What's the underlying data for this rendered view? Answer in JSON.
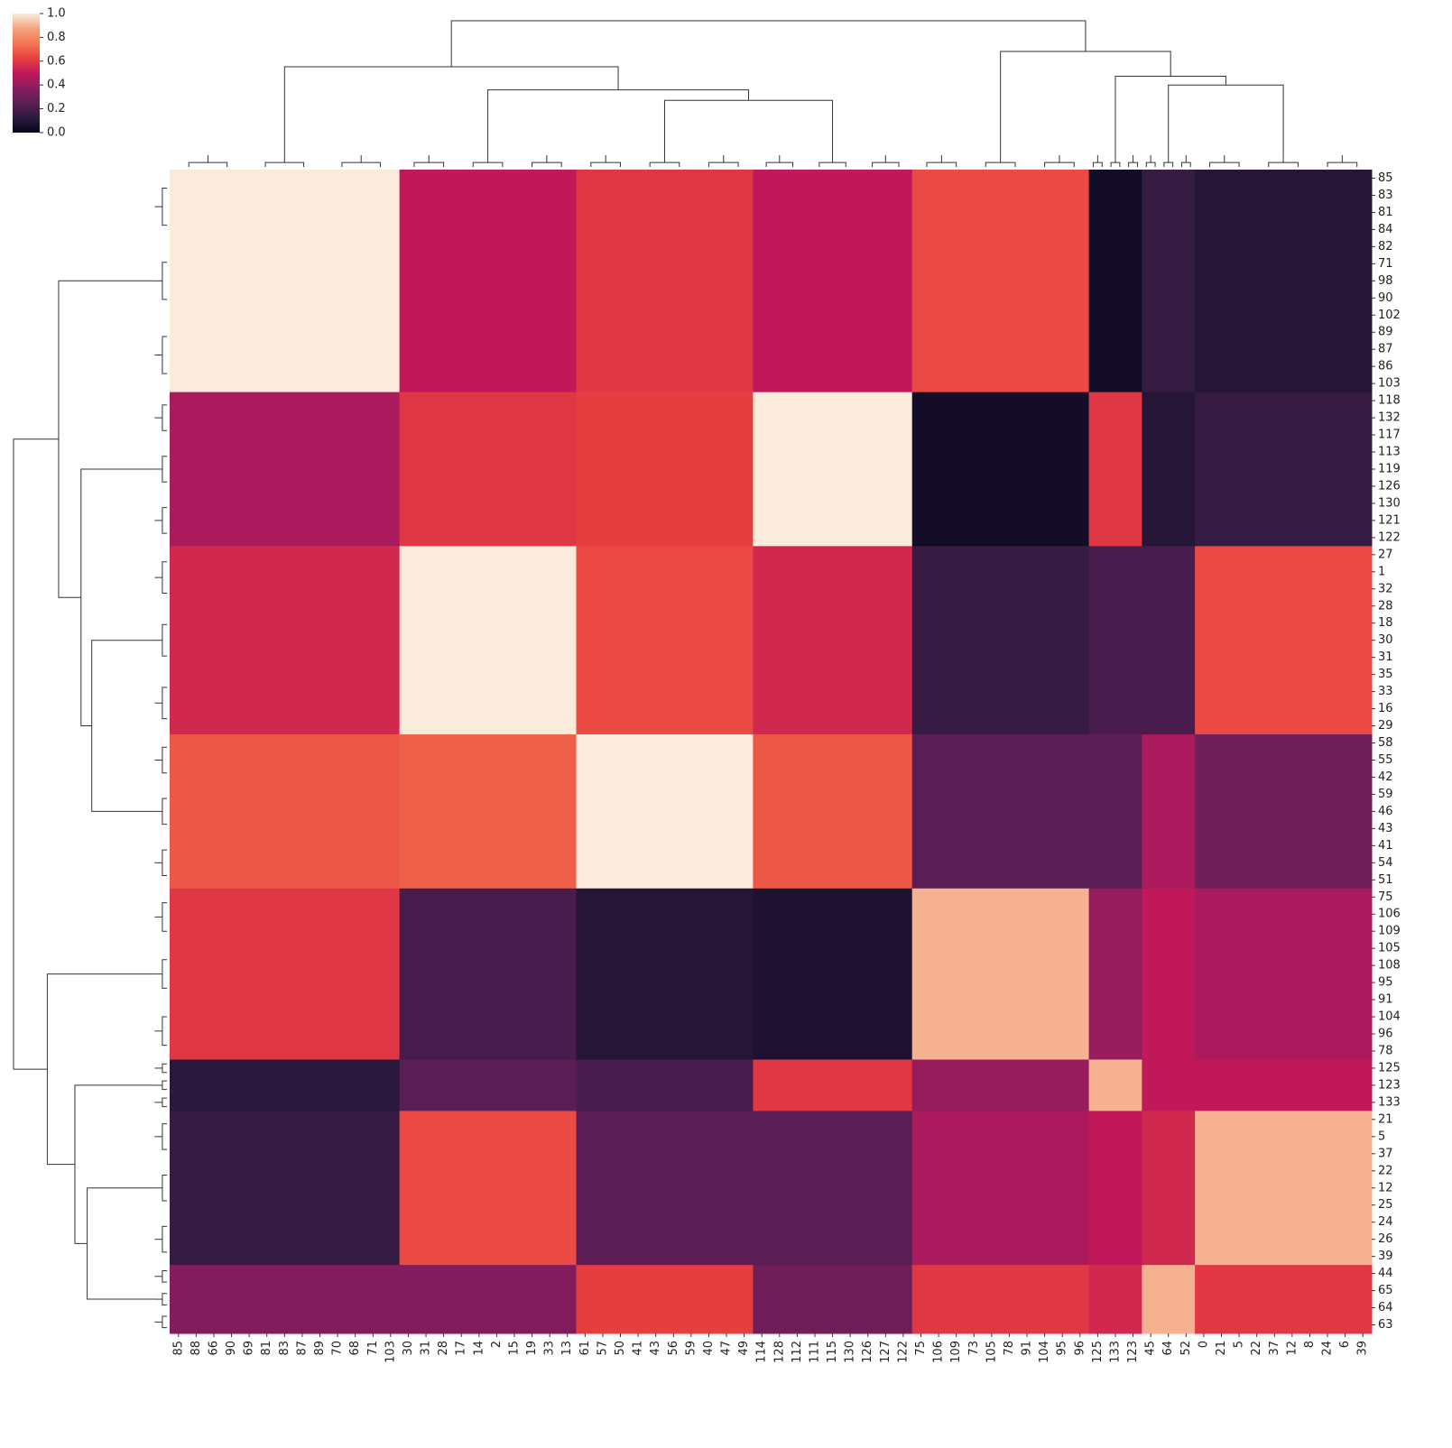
{
  "chart_data": {
    "type": "clustermap",
    "x_groups": [
      [
        "85",
        "88",
        "66",
        "90",
        "69",
        "81",
        "83",
        "87",
        "89",
        "70",
        "68",
        "71",
        "103"
      ],
      [
        "30",
        "31",
        "28",
        "17",
        "14",
        "2",
        "15",
        "19",
        "33",
        "13"
      ],
      [
        "61",
        "57",
        "50",
        "41",
        "43",
        "56",
        "59",
        "40",
        "47",
        "49"
      ],
      [
        "114",
        "128",
        "112",
        "111",
        "115",
        "130",
        "126",
        "127",
        "122"
      ],
      [
        "75",
        "106",
        "109",
        "73",
        "105",
        "78",
        "91",
        "104",
        "95",
        "96"
      ],
      [
        "125",
        "133",
        "123"
      ],
      [
        "45",
        "64",
        "52"
      ],
      [
        "0",
        "21",
        "5",
        "22",
        "37",
        "12",
        "8",
        "24",
        "6",
        "39"
      ]
    ],
    "y_groups": [
      [
        "85",
        "83",
        "81",
        "84",
        "82",
        "71",
        "98",
        "90",
        "102",
        "89",
        "87",
        "86",
        "103"
      ],
      [
        "118",
        "132",
        "117",
        "113",
        "119",
        "126",
        "130",
        "121",
        "122"
      ],
      [
        "27",
        "1",
        "32",
        "28",
        "18",
        "30",
        "31",
        "35",
        "33",
        "16",
        "29"
      ],
      [
        "58",
        "55",
        "42",
        "59",
        "46",
        "43",
        "41",
        "54",
        "51"
      ],
      [
        "75",
        "106",
        "109",
        "105",
        "108",
        "95",
        "91",
        "104",
        "96",
        "78"
      ],
      [
        "125",
        "123",
        "133"
      ],
      [
        "21",
        "5",
        "37",
        "22",
        "12",
        "25",
        "24",
        "26",
        "39"
      ],
      [
        "44",
        "65",
        "64",
        "63"
      ]
    ],
    "values": [
      [
        1.0,
        0.5,
        0.6,
        0.5,
        0.65,
        0.05,
        0.15,
        0.1
      ],
      [
        0.45,
        0.6,
        0.62,
        1.0,
        0.05,
        0.6,
        0.1,
        0.15
      ],
      [
        0.55,
        1.0,
        0.65,
        0.55,
        0.15,
        0.2,
        0.2,
        0.65
      ],
      [
        0.68,
        0.7,
        1.0,
        0.68,
        0.25,
        0.25,
        0.45,
        0.3
      ],
      [
        0.6,
        0.2,
        0.1,
        0.08,
        0.9,
        0.4,
        0.5,
        0.45
      ],
      [
        0.12,
        0.25,
        0.2,
        0.6,
        0.4,
        0.9,
        0.5,
        0.5
      ],
      [
        0.15,
        0.65,
        0.25,
        0.25,
        0.45,
        0.5,
        0.55,
        0.9
      ],
      [
        0.35,
        0.35,
        0.62,
        0.3,
        0.6,
        0.55,
        0.9,
        0.6
      ]
    ],
    "colormap": [
      "#03051a",
      "#2d1a3e",
      "#5a1e55",
      "#8b1d5f",
      "#c1185a",
      "#e83f3f",
      "#f37651",
      "#f5a37d",
      "#faebdd"
    ],
    "clim": [
      0,
      1
    ],
    "cticks": [
      {
        "value": 0,
        "label": "0.0"
      },
      {
        "value": 0.2,
        "label": "0.2"
      },
      {
        "value": 0.4,
        "label": "0.4"
      },
      {
        "value": 0.6,
        "label": "0.6"
      },
      {
        "value": 0.8,
        "label": "0.8"
      },
      {
        "value": 1,
        "label": "1.0"
      }
    ]
  }
}
